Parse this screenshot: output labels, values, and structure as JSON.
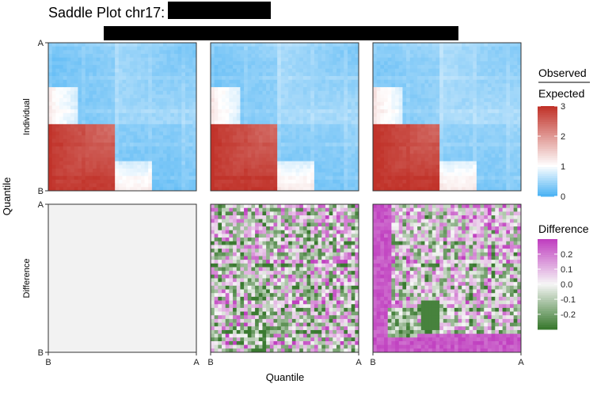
{
  "chart_data": {
    "type": "heatmap",
    "title": "Saddle Plot chr17:",
    "xlabel": "Quantile",
    "ylabel": "Quantile",
    "row_labels": [
      "Individual",
      "Difference"
    ],
    "axis_tick_labels": {
      "x": [
        "B",
        "A"
      ],
      "y": [
        "A",
        "B"
      ]
    },
    "panels": [
      {
        "row": "Individual",
        "col": 1,
        "kind": "observed_expected"
      },
      {
        "row": "Individual",
        "col": 2,
        "kind": "observed_expected"
      },
      {
        "row": "Individual",
        "col": 3,
        "kind": "observed_expected"
      },
      {
        "row": "Difference",
        "col": 1,
        "kind": "difference",
        "pattern": "zero"
      },
      {
        "row": "Difference",
        "col": 2,
        "kind": "difference",
        "pattern": "weak"
      },
      {
        "row": "Difference",
        "col": 3,
        "kind": "difference",
        "pattern": "strong"
      }
    ],
    "legends": [
      {
        "title_top": "Observed",
        "title_bottom": "Expected",
        "range": [
          0,
          3
        ],
        "ticks": [
          0,
          1,
          2,
          3
        ],
        "tick_labels": [
          "0",
          "1",
          "2",
          "3"
        ],
        "colors": [
          "#4fb4f4",
          "#ffffff",
          "#c1332a"
        ],
        "color_stops": [
          0,
          1,
          3
        ]
      },
      {
        "title": "Difference",
        "range": [
          -0.3,
          0.3
        ],
        "ticks": [
          -0.2,
          -0.1,
          0.0,
          0.1,
          0.2
        ],
        "tick_labels": [
          "-0.2",
          "-0.1",
          "0.0",
          "0.1",
          "0.2"
        ],
        "colors": [
          "#3a7a30",
          "#f6f6f6",
          "#c040c0"
        ]
      }
    ],
    "empty_panel_color": "#f2f2f2"
  }
}
